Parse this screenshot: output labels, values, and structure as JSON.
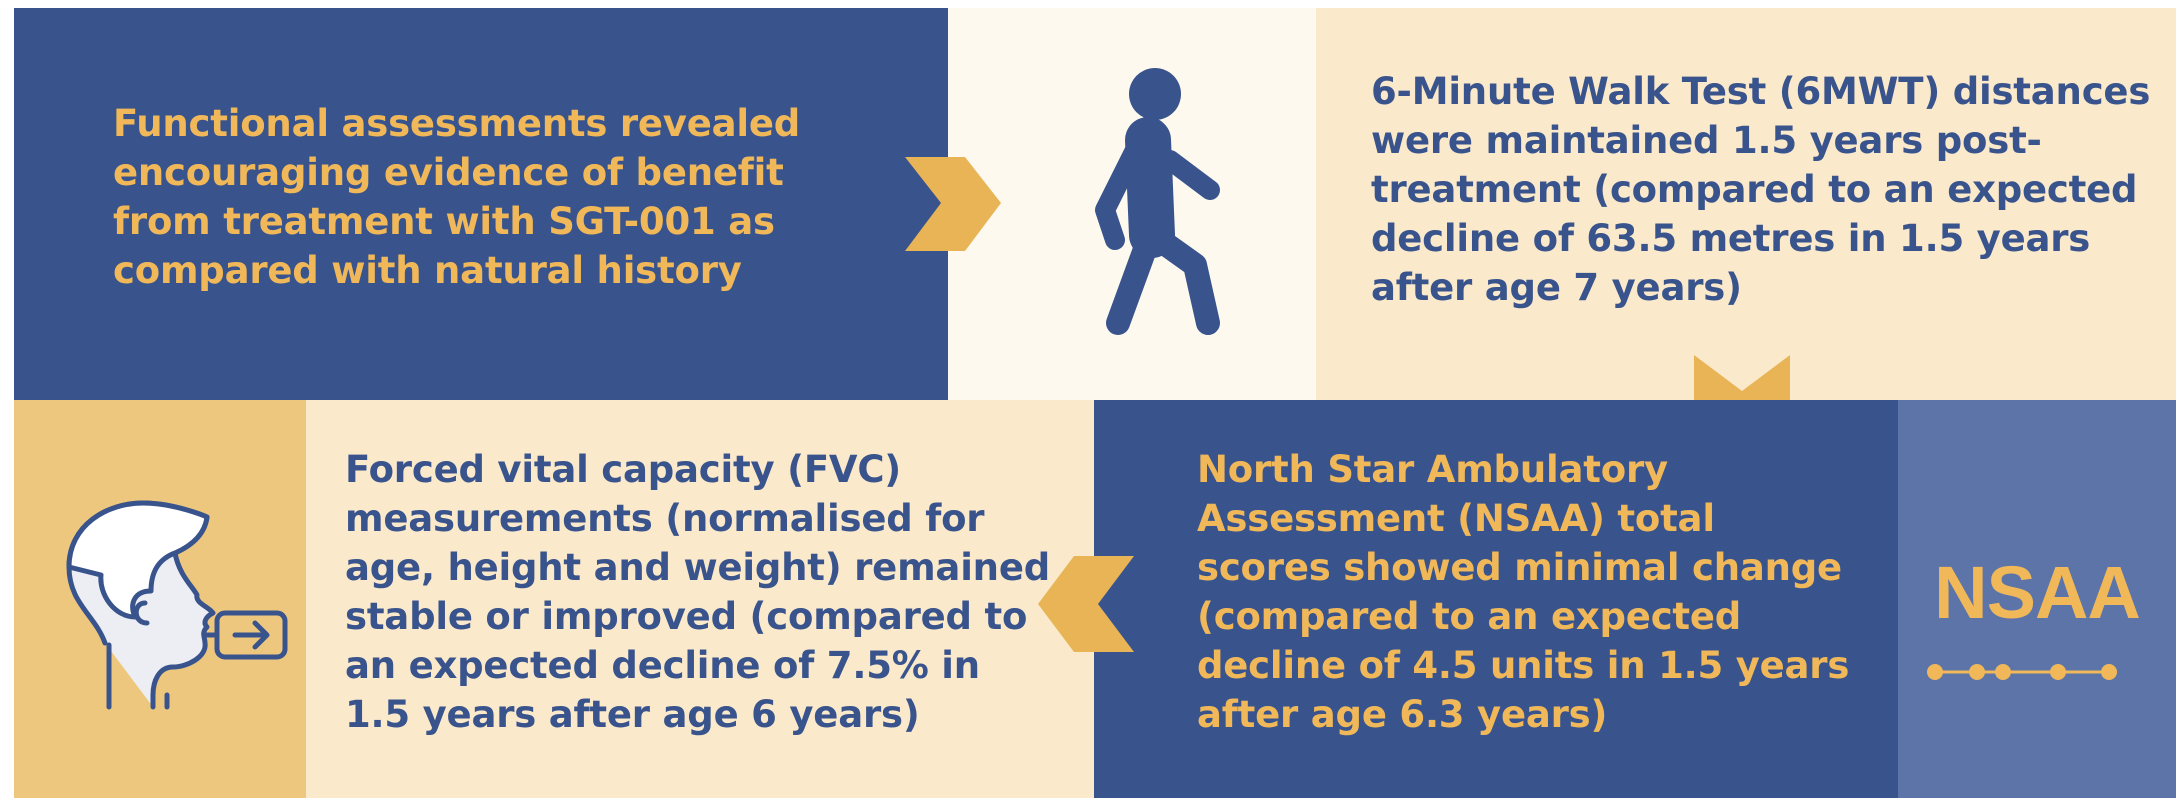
{
  "colors": {
    "navy": "#39548C",
    "cream": "#FAE9CB",
    "offwhite": "#FEF9EF",
    "gold": "#E8B456",
    "gold_panel": "#EEC77F",
    "slate": "#5D74A8",
    "gold_text": "#F0B859"
  },
  "intro": {
    "lines": [
      "Functional assessments revealed",
      "encouraging evidence of benefit",
      "from treatment with SGT-001 as",
      "compared with natural history"
    ]
  },
  "walk": {
    "icon": "walking-person-icon",
    "lines": [
      "6-Minute Walk Test (6MWT) distances",
      "were maintained 1.5 years post-",
      "treatment (compared to an expected",
      "decline of 63.5 metres in 1.5 years",
      "after age 7 years)"
    ]
  },
  "nsaa": {
    "lines": [
      "North Star Ambulatory",
      "Assessment (NSAA) total",
      "scores showed minimal change",
      "(compared to an expected",
      "decline of 4.5 units in 1.5 years",
      "after age 6.3 years)"
    ],
    "badge_text": "NSAA",
    "icon": "dotted-line-icon"
  },
  "fvc": {
    "icon": "spirometer-person-icon",
    "lines": [
      "Forced vital capacity (FVC)",
      "measurements (normalised for",
      "age, height and weight) remained",
      "stable or improved (compared to",
      "an expected decline of 7.5% in",
      "1.5 years after age 6 years)"
    ]
  }
}
